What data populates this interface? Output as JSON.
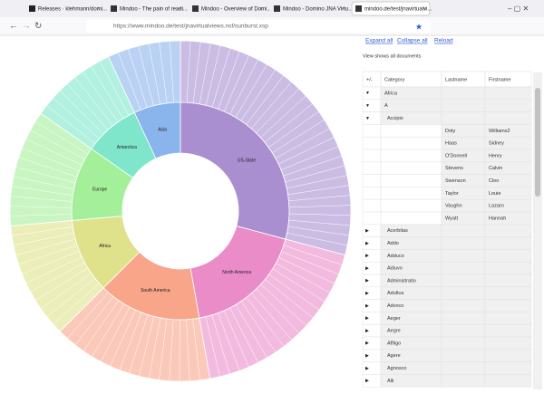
{
  "browser": {
    "tabs": [
      "Releases · klehmann/domi...",
      "Mindoo - The pain of readi...",
      "Mindoo - Overview of Domi...",
      "Mindoo - Domino JNA Virtu...",
      "mindoo.de/test/jnavirtualvi..."
    ],
    "url": "https://www.mindoo.de/test/jnavirtualviews.nsf/sunburst.xsp"
  },
  "toolbar": {
    "links": [
      "Expand all",
      "Collapse all",
      "Reload"
    ],
    "status": "View shows all documents"
  },
  "table": {
    "headers": [
      "+/-",
      "Category",
      "Lastname",
      "Firstname"
    ],
    "rows": [
      {
        "category": "Africa",
        "children": [
          {
            "category": "A",
            "children": [
              {
                "category": "Accipio",
                "children": [
                  {
                    "lastname": "Doty",
                    "firstname": "Williams2"
                  },
                  {
                    "lastname": "Haas",
                    "firstname": "Sidney"
                  },
                  {
                    "lastname": "O'Donnell",
                    "firstname": "Henry"
                  },
                  {
                    "lastname": "Stevens",
                    "firstname": "Calvin"
                  },
                  {
                    "lastname": "Swenson",
                    "firstname": "Cleo"
                  },
                  {
                    "lastname": "Taylor",
                    "firstname": "Louie"
                  },
                  {
                    "lastname": "Vaughn",
                    "firstname": "Lazaro"
                  },
                  {
                    "lastname": "Wyatt",
                    "firstname": "Hannah"
                  }
                ]
              },
              {
                "category": "Acerbitas"
              },
              {
                "category": "Addo"
              },
              {
                "category": "Adduco"
              },
              {
                "category": "Adiuvo"
              },
              {
                "category": "Administratio"
              },
              {
                "category": "Adultus"
              },
              {
                "category": "Advoco"
              },
              {
                "category": "Aeger"
              },
              {
                "category": "Aegre"
              },
              {
                "category": "Affligo"
              },
              {
                "category": "Agere"
              },
              {
                "category": "Agnosco"
              },
              {
                "category": "Alii"
              }
            ]
          }
        ]
      }
    ]
  },
  "chart_data": {
    "type": "sunburst",
    "categories": [
      "US-State",
      "North America",
      "South America",
      "Africa",
      "Europe",
      "Antarctica",
      "Asia"
    ],
    "values": [
      105,
      65,
      55,
      40,
      40,
      30,
      25
    ],
    "colors": [
      "#a98fd0",
      "#e98cc8",
      "#f9a58a",
      "#dfe28a",
      "#a4ef9a",
      "#7fe6cc",
      "#8ab4ec"
    ]
  }
}
